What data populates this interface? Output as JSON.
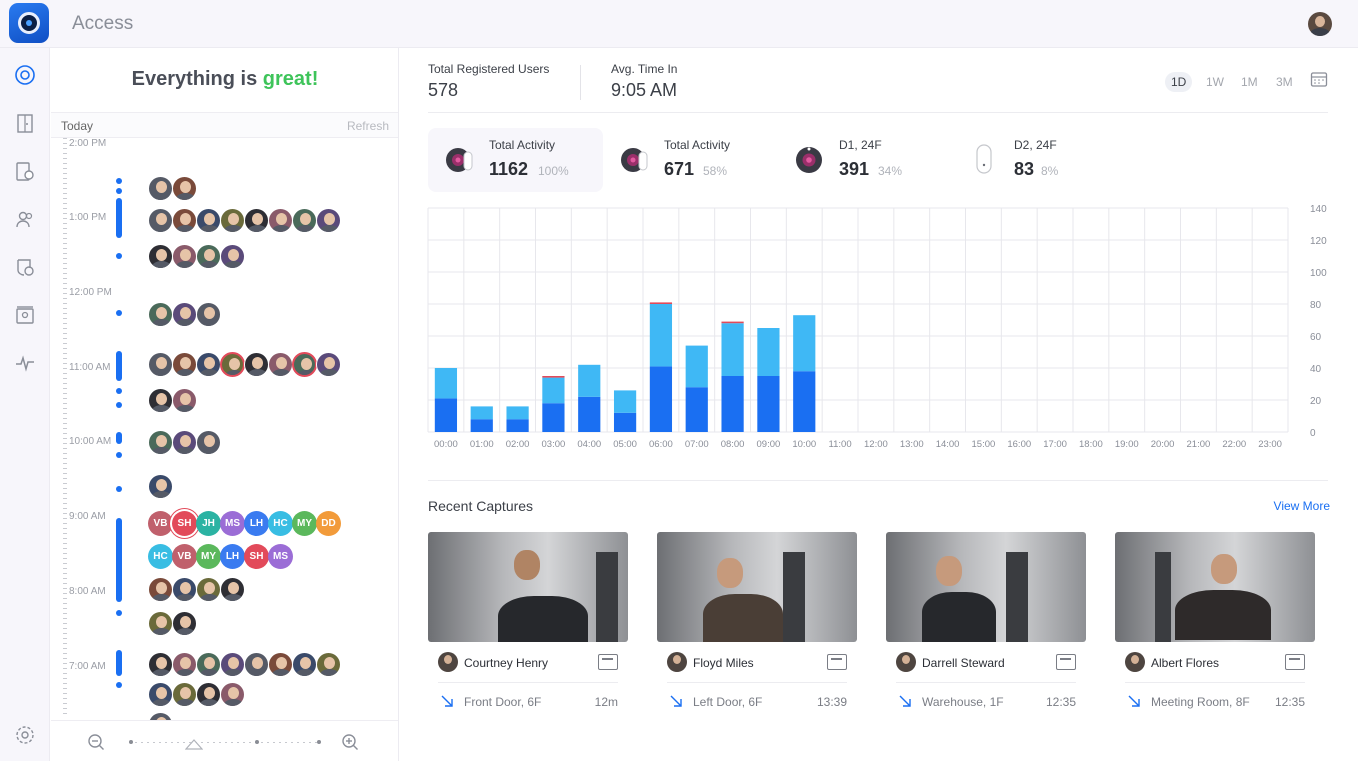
{
  "app": {
    "title": "Access"
  },
  "timeline": {
    "status_prefix": "Everything is ",
    "status_highlight": "great!",
    "today_label": "Today",
    "refresh_label": "Refresh",
    "times": [
      "2:00 PM",
      "1:00 PM",
      "12:00 PM",
      "11:00 AM",
      "10:00 AM",
      "9:00 AM",
      "8:00 AM",
      "7:00 AM"
    ],
    "initials_row1": [
      "VB",
      "SH",
      "JH",
      "MS",
      "LH",
      "HC",
      "MY",
      "DD"
    ],
    "initials_row2": [
      "HC",
      "VB",
      "MY",
      "LH",
      "SH",
      "MS"
    ]
  },
  "stats": {
    "total_users_label": "Total Registered Users",
    "total_users_value": "578",
    "avg_time_label": "Avg. Time In",
    "avg_time_value": "9:05 AM",
    "ranges": [
      "1D",
      "1W",
      "1M",
      "3M"
    ],
    "active_range": "1D"
  },
  "activity": [
    {
      "label": "Total Activity",
      "value": "1162",
      "pct": "100%"
    },
    {
      "label": "Total Activity",
      "value": "671",
      "pct": "58%"
    },
    {
      "label": "D1, 24F",
      "value": "391",
      "pct": "34%"
    },
    {
      "label": "D2, 24F",
      "value": "83",
      "pct": "8%"
    }
  ],
  "colors": {
    "accent": "#1a6ff2",
    "light_bar": "#3fb8f5",
    "dark_bar": "#1a6ff2",
    "alert": "#e24a5a",
    "great": "#3ec45a"
  },
  "chart_data": {
    "type": "bar",
    "stacked": true,
    "categories": [
      "00:00",
      "01:00",
      "02:00",
      "03:00",
      "04:00",
      "05:00",
      "06:00",
      "07:00",
      "08:00",
      "09:00",
      "10:00",
      "11:00",
      "12:00",
      "13:00",
      "14:00",
      "15:00",
      "16:00",
      "17:00",
      "18:00",
      "19:00",
      "20:00",
      "21:00",
      "22:00",
      "23:00"
    ],
    "series": [
      {
        "values": [
          21,
          8,
          8,
          18,
          22,
          12,
          41,
          28,
          35,
          35,
          38,
          0,
          0,
          0,
          0,
          0,
          0,
          0,
          0,
          0,
          0,
          0,
          0,
          0
        ]
      },
      {
        "values": [
          19,
          8,
          8,
          16,
          20,
          14,
          39,
          26,
          33,
          30,
          35,
          0,
          0,
          0,
          0,
          0,
          0,
          0,
          0,
          0,
          0,
          0,
          0,
          0
        ]
      },
      {
        "values": [
          0,
          0,
          0,
          1,
          0,
          0,
          1,
          0,
          1,
          0,
          0,
          0,
          0,
          0,
          0,
          0,
          0,
          0,
          0,
          0,
          0,
          0,
          0,
          0
        ]
      }
    ],
    "yticks": [
      0,
      20,
      40,
      60,
      80,
      100,
      120,
      140
    ],
    "ylim": [
      0,
      140
    ],
    "grid": true,
    "yaxis_side": "right"
  },
  "recent": {
    "title": "Recent Captures",
    "view_more": "View More",
    "items": [
      {
        "name": "Courtney Henry",
        "location": "Front Door, 6F",
        "time": "12m"
      },
      {
        "name": "Floyd Miles",
        "location": "Left Door, 6F",
        "time": "13:39"
      },
      {
        "name": "Darrell Steward",
        "location": "Warehouse, 1F",
        "time": "12:35"
      },
      {
        "name": "Albert Flores",
        "location": "Meeting Room, 8F",
        "time": "12:35"
      }
    ]
  }
}
